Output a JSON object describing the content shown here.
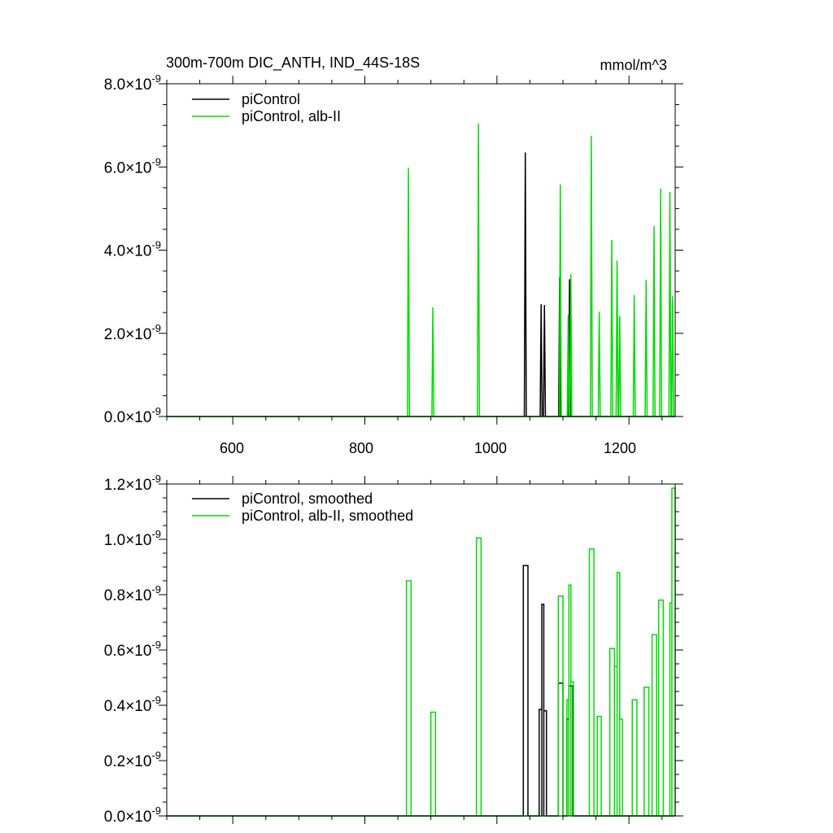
{
  "colors": {
    "piControl": "#000000",
    "alb": "#00dd00"
  },
  "chart_data": [
    {
      "type": "line",
      "title": "300m-700m DIC_ANTH, IND_44S-18S",
      "units": "mmol/m^3",
      "xlim": [
        500,
        1270
      ],
      "ylim": [
        0,
        8e-09
      ],
      "x_ticks": [
        600,
        800,
        1000,
        1200
      ],
      "x_tick_labels": [
        "600",
        "800",
        "1000",
        "1200"
      ],
      "y_ticks": [
        0,
        2e-09,
        4e-09,
        6e-09,
        8e-09
      ],
      "y_tick_mant": [
        "0.0",
        "2.0",
        "4.0",
        "6.0",
        "8.0"
      ],
      "y_tick_exp": "-9",
      "legend": "top-left",
      "series": [
        {
          "name": "piControl",
          "color": "#000000",
          "spikes": [
            {
              "x": 1043,
              "y": 6.35e-09
            },
            {
              "x": 1067,
              "y": 2.7e-09
            },
            {
              "x": 1072,
              "y": 2.68e-09
            },
            {
              "x": 1095,
              "y": 3.35e-09
            },
            {
              "x": 1110,
              "y": 3.3e-09
            }
          ]
        },
        {
          "name": "piControl, alb-II",
          "color": "#00dd00",
          "spikes": [
            {
              "x": 866,
              "y": 5.98e-09
            },
            {
              "x": 903,
              "y": 2.62e-09
            },
            {
              "x": 972,
              "y": 7.05e-09
            },
            {
              "x": 1096,
              "y": 5.58e-09
            },
            {
              "x": 1108,
              "y": 2.45e-09
            },
            {
              "x": 1112,
              "y": 3.42e-09
            },
            {
              "x": 1143,
              "y": 6.75e-09
            },
            {
              "x": 1155,
              "y": 2.52e-09
            },
            {
              "x": 1174,
              "y": 4.25e-09
            },
            {
              "x": 1182,
              "y": 3.75e-09
            },
            {
              "x": 1186,
              "y": 2.42e-09
            },
            {
              "x": 1208,
              "y": 2.92e-09
            },
            {
              "x": 1226,
              "y": 3.28e-09
            },
            {
              "x": 1238,
              "y": 4.58e-09
            },
            {
              "x": 1248,
              "y": 5.48e-09
            },
            {
              "x": 1262,
              "y": 5.4e-09
            },
            {
              "x": 1266,
              "y": 2.9e-09
            }
          ]
        }
      ]
    },
    {
      "type": "line",
      "xlim": [
        500,
        1270
      ],
      "ylim": [
        0,
        1.2e-09
      ],
      "x_ticks": [
        600,
        800,
        1000,
        1200
      ],
      "y_ticks": [
        0,
        2e-10,
        4e-10,
        6e-10,
        8e-10,
        1e-09,
        1.2e-09
      ],
      "y_tick_mant": [
        "0.0",
        "0.2",
        "0.4",
        "0.6",
        "0.8",
        "1.0",
        "1.2"
      ],
      "y_tick_exp": "-9",
      "legend": "top-left",
      "series": [
        {
          "name": "piControl, smoothed",
          "color": "#000000",
          "steps": [
            {
              "x0": 1040,
              "x1": 1047,
              "y": 9.05e-10
            },
            {
              "x0": 1064,
              "x1": 1068,
              "y": 3.85e-10
            },
            {
              "x0": 1068,
              "x1": 1071,
              "y": 7.65e-10
            },
            {
              "x0": 1071,
              "x1": 1075,
              "y": 3.8e-10
            },
            {
              "x0": 1093,
              "x1": 1100,
              "y": 4.8e-10
            },
            {
              "x0": 1106,
              "x1": 1109,
              "y": 3.5e-10
            },
            {
              "x0": 1109,
              "x1": 1115,
              "y": 4.7e-10
            }
          ]
        },
        {
          "name": "piControl, alb-II, smoothed",
          "color": "#00dd00",
          "steps": [
            {
              "x0": 863,
              "x1": 870,
              "y": 8.5e-10
            },
            {
              "x0": 900,
              "x1": 907,
              "y": 3.75e-10
            },
            {
              "x0": 969,
              "x1": 976,
              "y": 1.005e-09
            },
            {
              "x0": 1093,
              "x1": 1100,
              "y": 7.95e-10
            },
            {
              "x0": 1106,
              "x1": 1109,
              "y": 4.2e-10
            },
            {
              "x0": 1109,
              "x1": 1112,
              "y": 8.35e-10
            },
            {
              "x0": 1112,
              "x1": 1116,
              "y": 4.85e-10
            },
            {
              "x0": 1140,
              "x1": 1147,
              "y": 9.65e-10
            },
            {
              "x0": 1152,
              "x1": 1158,
              "y": 3.6e-10
            },
            {
              "x0": 1171,
              "x1": 1178,
              "y": 6.05e-10
            },
            {
              "x0": 1178,
              "x1": 1182,
              "y": 5.4e-10
            },
            {
              "x0": 1182,
              "x1": 1186,
              "y": 8.8e-10
            },
            {
              "x0": 1186,
              "x1": 1190,
              "y": 3.5e-10
            },
            {
              "x0": 1205,
              "x1": 1212,
              "y": 4.2e-10
            },
            {
              "x0": 1223,
              "x1": 1230,
              "y": 4.65e-10
            },
            {
              "x0": 1235,
              "x1": 1242,
              "y": 6.55e-10
            },
            {
              "x0": 1245,
              "x1": 1252,
              "y": 7.8e-10
            },
            {
              "x0": 1262,
              "x1": 1265,
              "y": 7.7e-10
            },
            {
              "x0": 1265,
              "x1": 1270,
              "y": 1.185e-09
            }
          ]
        }
      ]
    }
  ]
}
